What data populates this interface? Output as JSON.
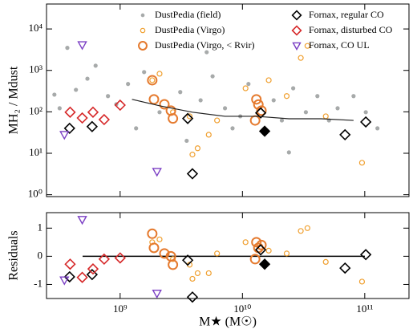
{
  "chart_data": [
    {
      "type": "scatter",
      "ylabel": "MH₂ / Mdust",
      "xscale": "log",
      "yscale": "log",
      "xlim": [
        250000000,
        230000000000
      ],
      "ylim": [
        0.9,
        40000
      ],
      "xticks": [
        {
          "value": 1000000000,
          "label": "10⁹"
        },
        {
          "value": 10000000000,
          "label": "10¹⁰"
        },
        {
          "value": 100000000000,
          "label": "10¹¹"
        }
      ],
      "yticks": [
        {
          "value": 1,
          "label": "10⁰"
        },
        {
          "value": 10,
          "label": "10¹"
        },
        {
          "value": 100,
          "label": "10²"
        },
        {
          "value": 1000,
          "label": "10³"
        },
        {
          "value": 10000,
          "label": "10⁴"
        }
      ],
      "series": [
        {
          "name": "DustPedia (field)",
          "color": "#a7aaaa",
          "marker": "dot",
          "x": [
            290000000,
            320000000,
            435000000,
            540000000,
            630000000,
            795000000,
            930000000,
            1160000000,
            1350000000,
            1570000000,
            2100000000,
            3100000000,
            4550000000,
            5700000000,
            7200000000,
            8300000000,
            9600000000,
            11200000000,
            18000000000,
            21000000000,
            26000000000,
            33000000000,
            41000000000,
            51000000000,
            60000000000,
            81000000000,
            102000000000,
            127000000000,
            3500000000,
            24000000000,
            5100000000,
            370000000
          ],
          "values": [
            260,
            122,
            340,
            630,
            1300,
            240,
            152,
            470,
            40,
            910,
            98,
            300,
            190,
            720,
            122,
            40,
            78,
            470,
            190,
            62,
            370,
            98,
            240,
            62,
            122,
            240,
            98,
            40,
            20,
            10.5,
            2750,
            3500
          ]
        },
        {
          "name": "DustPedia (Virgo)",
          "color": "#f0a030",
          "marker": "circle",
          "x": [
            1830000000,
            2100000000,
            2700000000,
            3700000000,
            5300000000,
            6200000000,
            10600000000,
            16400000000,
            23000000000,
            30000000000,
            48000000000,
            95000000000,
            3900000000,
            4300000000,
            34000000000
          ],
          "values": [
            580,
            830,
            98,
            78,
            28,
            62,
            370,
            580,
            240,
            2000,
            78,
            5.9,
            9.3,
            13.2,
            3900
          ]
        },
        {
          "name": "DustPedia (Virgo, < Rvir)",
          "color": "#e57a2e",
          "marker": "big-circle",
          "x": [
            1830000000,
            1890000000,
            2300000000,
            2600000000,
            2700000000,
            13000000000,
            13500000000,
            14300000000,
            12700000000
          ],
          "values": [
            580,
            200,
            152,
            107,
            69,
            200,
            150,
            107,
            62
          ]
        },
        {
          "name": "Fornax, regular CO",
          "color": "#000000",
          "marker": "diamond",
          "x": [
            386000000,
            590000000,
            3570000000,
            3900000000,
            14100000000,
            69000000000,
            102000000000
          ],
          "values": [
            40,
            44,
            69,
            3.2,
            94,
            28,
            57
          ]
        },
        {
          "color": "#000000",
          "marker": "diamond",
          "filled": true,
          "x": [
            15200000000
          ],
          "values": [
            34
          ]
        },
        {
          "name": "Fornax, disturbed CO",
          "color": "#d62728",
          "marker": "diamond",
          "x": [
            390000000,
            600000000,
            740000000,
            1000000000,
            490000000
          ],
          "values": [
            98,
            98,
            65,
            145,
            71
          ]
        },
        {
          "name": "Fornax, CO UL",
          "color": "#7b3fc4",
          "marker": "triangle",
          "x": [
            490000000,
            350000000,
            2000000000
          ],
          "values": [
            4100,
            28,
            3.6
          ]
        },
        {
          "color": "#222222",
          "kind": "line",
          "x": [
            1250000000,
            2100000000,
            3900000000,
            7200000000,
            13000000000,
            24000000000,
            44000000000,
            81000000000
          ],
          "values": [
            200,
            140,
            98,
            78,
            78,
            68,
            68,
            62
          ]
        }
      ]
    },
    {
      "type": "scatter",
      "ylabel": "Residuals",
      "xlabel": "M★ (M☉)",
      "xscale": "log",
      "xlim": [
        250000000,
        230000000000
      ],
      "ylim": [
        -1.5,
        1.55
      ],
      "hline": 0,
      "xticks": [
        {
          "value": 1000000000,
          "label": "10⁹"
        },
        {
          "value": 10000000000,
          "label": "10¹⁰"
        },
        {
          "value": 100000000000,
          "label": "10¹¹"
        }
      ],
      "yticks": [
        -1,
        0,
        1
      ],
      "series": [
        {
          "color": "#f0a030",
          "marker": "circle",
          "x": [
            1830000000,
            2100000000,
            2700000000,
            3700000000,
            5300000000,
            6200000000,
            10600000000,
            16400000000,
            23000000000,
            30000000000,
            48000000000,
            95000000000,
            3900000000,
            4300000000,
            34000000000
          ],
          "values": [
            0.5,
            0.6,
            -0.1,
            -0.3,
            -0.6,
            0.1,
            0.5,
            0.2,
            0.1,
            0.9,
            -0.2,
            -0.9,
            -0.8,
            -0.6,
            1.0
          ]
        },
        {
          "color": "#e57a2e",
          "marker": "big-circle",
          "x": [
            1830000000,
            1890000000,
            2300000000,
            2600000000,
            2700000000,
            13000000000,
            13500000000,
            14300000000,
            12700000000
          ],
          "values": [
            0.8,
            0.3,
            0.1,
            0.0,
            -0.3,
            0.5,
            0.3,
            0.4,
            -0.1
          ]
        },
        {
          "color": "#000000",
          "marker": "diamond",
          "x": [
            386000000,
            590000000,
            3570000000,
            3900000000,
            14100000000,
            69000000000,
            102000000000
          ],
          "values": [
            -0.73,
            -0.65,
            -0.14,
            -1.45,
            0.23,
            -0.42,
            0.06
          ]
        },
        {
          "color": "#000000",
          "marker": "diamond",
          "filled": true,
          "x": [
            15200000000
          ],
          "values": [
            -0.28
          ]
        },
        {
          "color": "#d62728",
          "marker": "diamond",
          "x": [
            390000000,
            600000000,
            740000000,
            1000000000,
            490000000
          ],
          "values": [
            -0.28,
            -0.45,
            -0.1,
            -0.06,
            -0.75
          ]
        },
        {
          "color": "#7b3fc4",
          "marker": "triangle",
          "x": [
            490000000,
            350000000,
            2000000000
          ],
          "values": [
            1.3,
            -0.85,
            -1.32
          ]
        }
      ]
    }
  ]
}
